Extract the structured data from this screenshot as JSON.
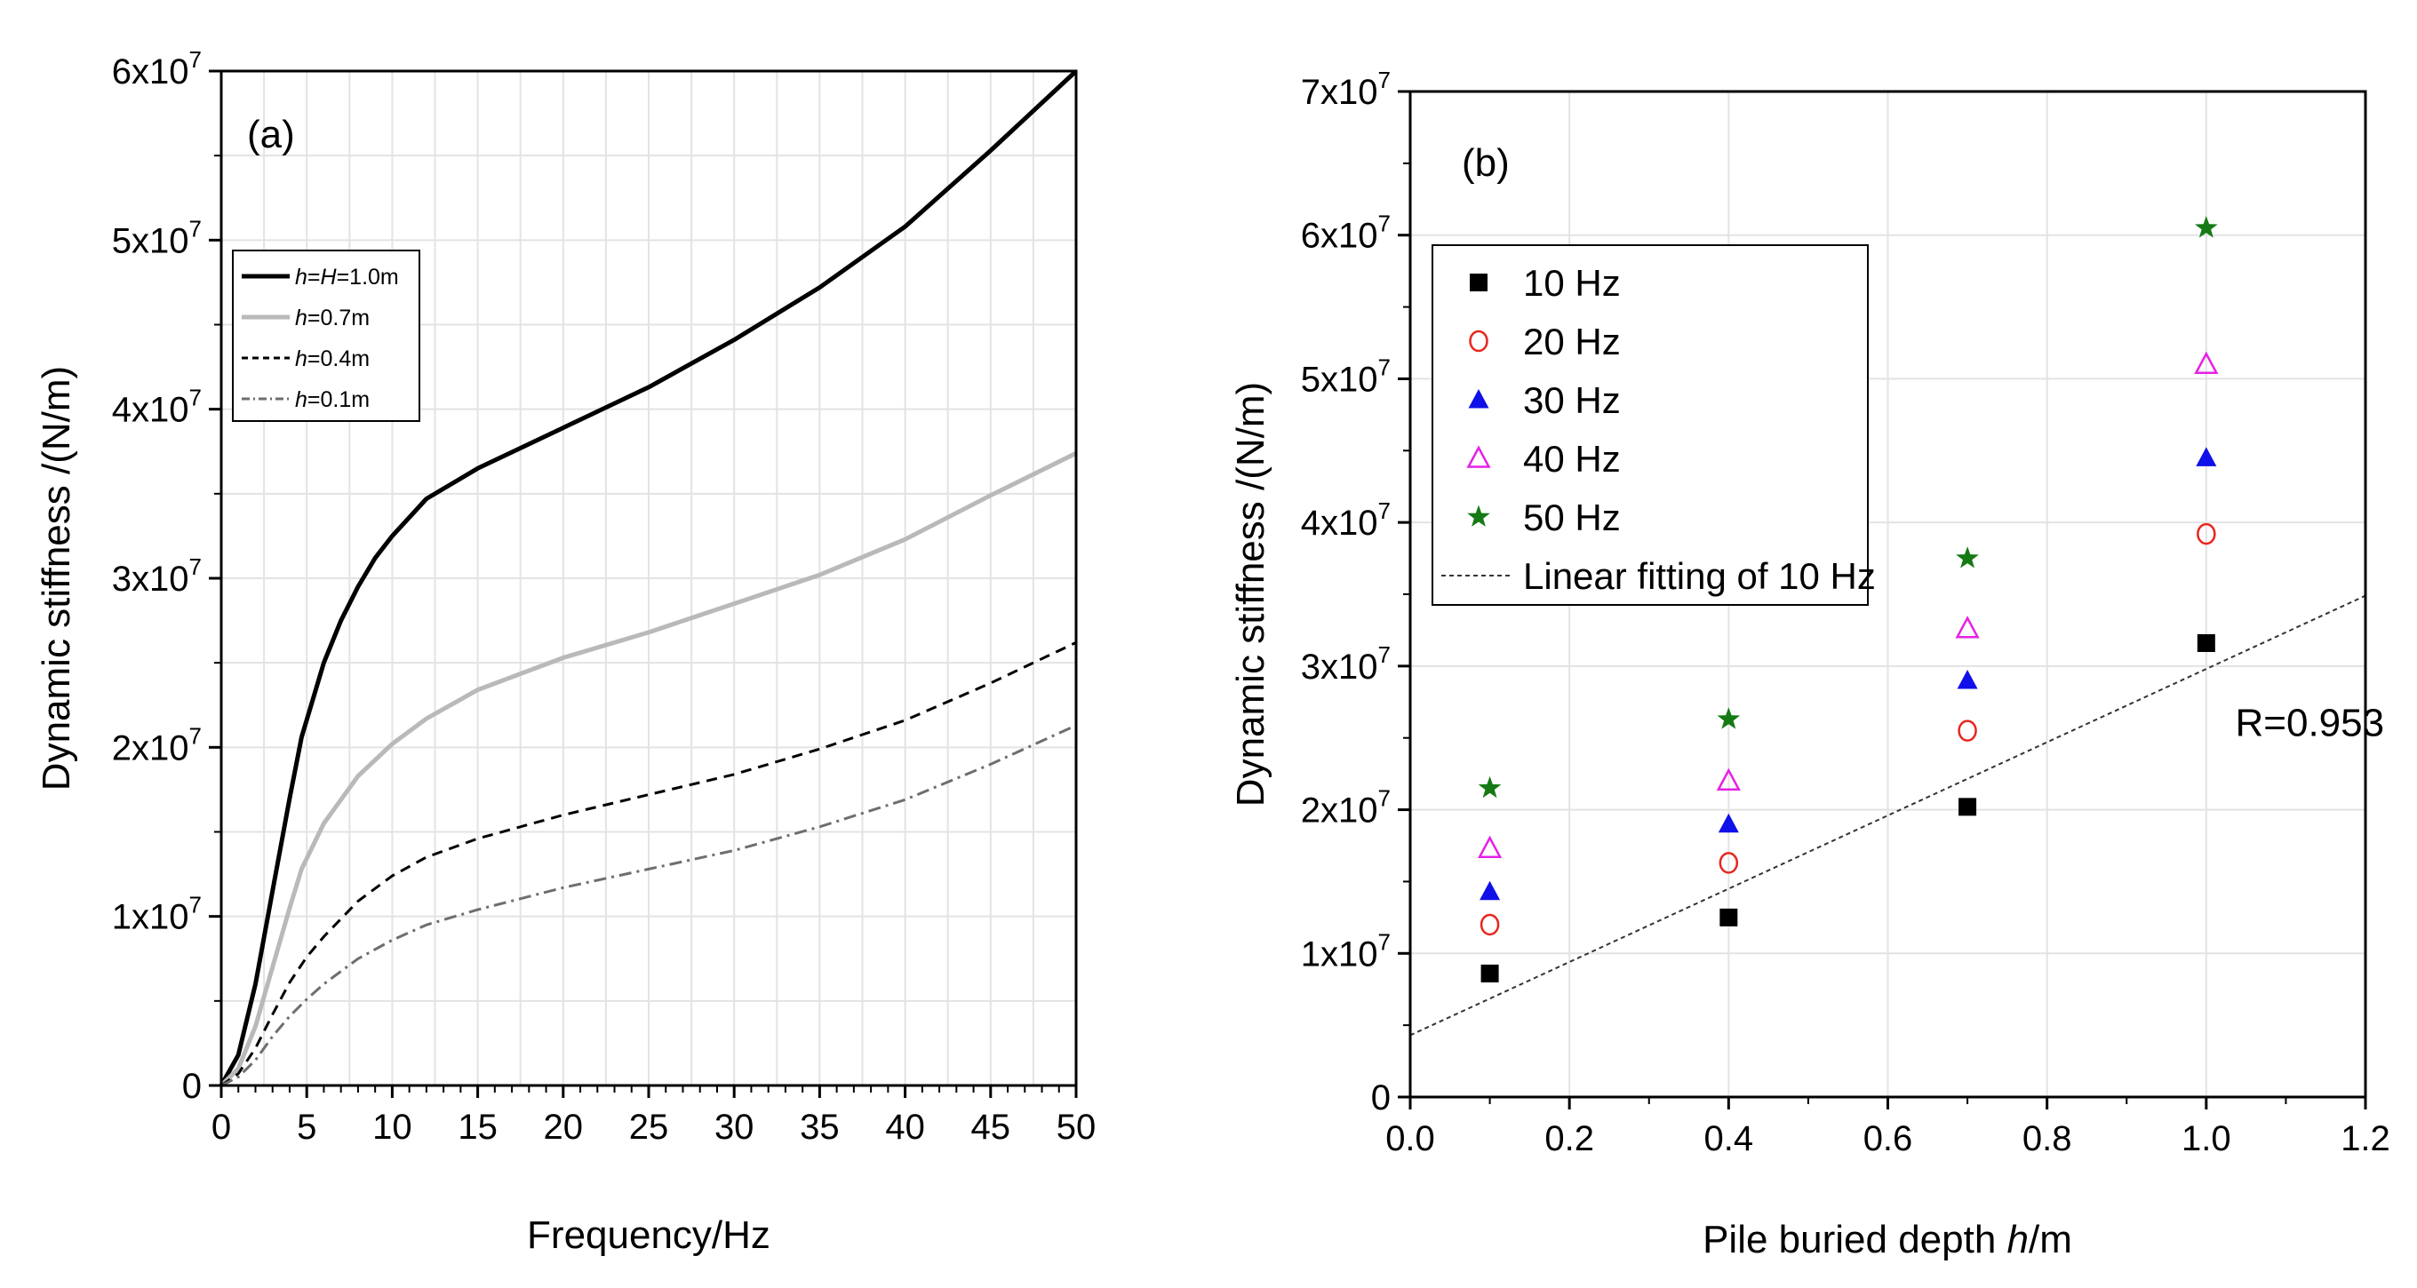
{
  "chart_data": [
    {
      "type": "line",
      "panel": "(a)",
      "xlabel": "Frequency/Hz",
      "ylabel": "Dynamic stiffness /(N/m)",
      "xlim": [
        0,
        50
      ],
      "ylim": [
        0,
        60000000
      ],
      "grid": true,
      "xticks": [
        0,
        5,
        10,
        15,
        20,
        25,
        30,
        35,
        40,
        45,
        50
      ],
      "yticks": [
        0,
        10000000,
        20000000,
        30000000,
        40000000,
        50000000,
        60000000
      ],
      "ytick_labels": [
        {
          "base": "0",
          "exp": ""
        },
        {
          "base": "1x10",
          "exp": "7"
        },
        {
          "base": "2x10",
          "exp": "7"
        },
        {
          "base": "3x10",
          "exp": "7"
        },
        {
          "base": "4x10",
          "exp": "7"
        },
        {
          "base": "5x10",
          "exp": "7"
        },
        {
          "base": "6x10",
          "exp": "7"
        }
      ],
      "legend_placement": "upper-left",
      "series": [
        {
          "name": "h=H=1.0m",
          "label_italic": "h",
          "label_mid": "=",
          "label_italic2": "H",
          "label_rest": "=1.0m",
          "color": "#000000",
          "style": "solid",
          "width": 5,
          "x": [
            0,
            1,
            2,
            3,
            4,
            4.7,
            6,
            7,
            8,
            9,
            10,
            12,
            15,
            20,
            25,
            30,
            35,
            40,
            45,
            50
          ],
          "y": [
            0,
            1800000,
            6000000,
            11500000,
            17000000,
            20600000,
            25000000,
            27500000,
            29500000,
            31200000,
            32500000,
            34700000,
            36500000,
            38900000,
            41300000,
            44100000,
            47200000,
            50800000,
            55300000,
            60000000
          ]
        },
        {
          "name": "h=0.7m",
          "label_italic": "h",
          "label_rest": "=0.7m",
          "color": "#b9b9b9",
          "style": "solid",
          "width": 5,
          "x": [
            0,
            1,
            2,
            3,
            4,
            4.7,
            6,
            8,
            10,
            12,
            15,
            20,
            25,
            30,
            35,
            40,
            45,
            50
          ],
          "y": [
            0,
            1000000,
            3500000,
            7000000,
            10500000,
            12800000,
            15500000,
            18300000,
            20200000,
            21700000,
            23400000,
            25300000,
            26800000,
            28500000,
            30200000,
            32300000,
            34900000,
            37400000
          ]
        },
        {
          "name": "h=0.4m",
          "label_italic": "h",
          "label_rest": "=0.4m",
          "color": "#000000",
          "style": "dashed",
          "width": 3,
          "x": [
            0,
            1,
            2,
            3,
            4,
            5,
            6,
            8,
            10,
            12,
            15,
            20,
            25,
            30,
            35,
            40,
            45,
            50
          ],
          "y": [
            0,
            700000,
            2200000,
            4200000,
            6100000,
            7600000,
            8800000,
            10900000,
            12400000,
            13500000,
            14600000,
            16000000,
            17200000,
            18400000,
            19900000,
            21600000,
            23800000,
            26200000
          ]
        },
        {
          "name": "h=0.1m",
          "label_italic": "h",
          "label_rest": "=0.1m",
          "color": "#6e6e6e",
          "style": "dashdot",
          "width": 3,
          "x": [
            0,
            1,
            2,
            3,
            4,
            5,
            6,
            8,
            10,
            12,
            15,
            20,
            25,
            30,
            35,
            40,
            45,
            50
          ],
          "y": [
            0,
            500000,
            1500000,
            2900000,
            4100000,
            5100000,
            6000000,
            7500000,
            8600000,
            9500000,
            10400000,
            11700000,
            12800000,
            13900000,
            15300000,
            16900000,
            19000000,
            21300000
          ]
        }
      ]
    },
    {
      "type": "scatter",
      "panel": "(b)",
      "xlabel_prefix": "Pile buried depth ",
      "xlabel_italic": "h",
      "xlabel_suffix": "/m",
      "ylabel": "Dynamic stiffness /(N/m)",
      "xlim": [
        0,
        1.2
      ],
      "ylim": [
        0,
        70000000
      ],
      "grid": true,
      "xticks": [
        0.0,
        0.2,
        0.4,
        0.6,
        0.8,
        1.0,
        1.2
      ],
      "xtick_labels": [
        "0.0",
        "0.2",
        "0.4",
        "0.6",
        "0.8",
        "1.0",
        "1.2"
      ],
      "yticks": [
        0,
        10000000,
        20000000,
        30000000,
        40000000,
        50000000,
        60000000,
        70000000
      ],
      "ytick_labels": [
        {
          "base": "0",
          "exp": ""
        },
        {
          "base": "1x10",
          "exp": "7"
        },
        {
          "base": "2x10",
          "exp": "7"
        },
        {
          "base": "3x10",
          "exp": "7"
        },
        {
          "base": "4x10",
          "exp": "7"
        },
        {
          "base": "5x10",
          "exp": "7"
        },
        {
          "base": "6x10",
          "exp": "7"
        },
        {
          "base": "7x10",
          "exp": "7"
        }
      ],
      "legend_placement": "upper-left",
      "series": [
        {
          "name": "10 Hz",
          "marker": "square",
          "color": "#000000",
          "x": [
            0.1,
            0.4,
            0.7,
            1.0
          ],
          "y": [
            8600000,
            12500000,
            20200000,
            31600000
          ]
        },
        {
          "name": "20 Hz",
          "marker": "circle-open",
          "color": "#e8261e",
          "x": [
            0.1,
            0.4,
            0.7,
            1.0
          ],
          "y": [
            12000000,
            16300000,
            25500000,
            39200000
          ]
        },
        {
          "name": "30 Hz",
          "marker": "triangle",
          "color": "#1010e8",
          "x": [
            0.1,
            0.4,
            0.7,
            1.0
          ],
          "y": [
            14300000,
            19000000,
            29000000,
            44500000
          ]
        },
        {
          "name": "40 Hz",
          "marker": "triangle-open",
          "color": "#e620e6",
          "x": [
            0.1,
            0.4,
            0.7,
            1.0
          ],
          "y": [
            17300000,
            22000000,
            32600000,
            51000000
          ]
        },
        {
          "name": "50 Hz",
          "marker": "star",
          "color": "#157a15",
          "x": [
            0.1,
            0.4,
            0.7,
            1.0
          ],
          "y": [
            21500000,
            26300000,
            37500000,
            60500000
          ]
        }
      ],
      "fit": {
        "name": "Linear fitting of 10 Hz",
        "style": "dotted",
        "color": "#333333",
        "x": [
          0,
          1.2
        ],
        "y": [
          4300000,
          34900000
        ]
      },
      "annotation": {
        "text": "R=0.953",
        "x": 1.13,
        "y": 26000000
      }
    }
  ]
}
